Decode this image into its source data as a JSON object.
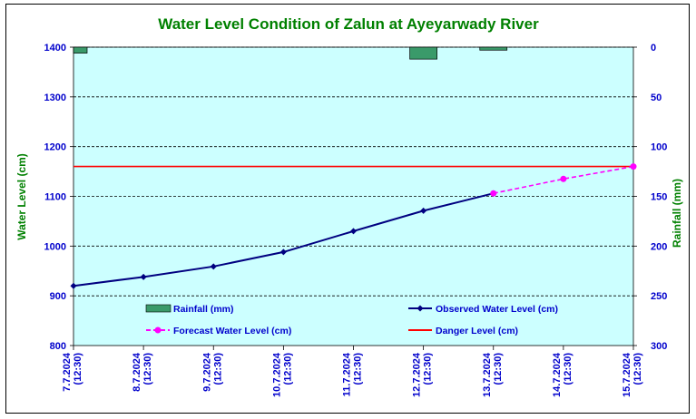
{
  "chart_data": {
    "type": "line",
    "title": "Water Level Condition of Zalun at Ayeyarwady River",
    "ylabel": "Water Level (cm)",
    "y2label": "Rainfall (mm)",
    "ylim": [
      800,
      1400
    ],
    "y2lim": [
      300,
      0
    ],
    "yticks": [
      "800",
      "900",
      "1000",
      "1100",
      "1200",
      "1300",
      "1400"
    ],
    "y2ticks": [
      "0",
      "50",
      "100",
      "150",
      "200",
      "250",
      "300"
    ],
    "categories": [
      [
        "7.7.2024",
        "(12:30)"
      ],
      [
        "8.7.2024",
        "(12:30)"
      ],
      [
        "9.7.2024",
        "(12:30)"
      ],
      [
        "10.7.2024",
        "(12:30)"
      ],
      [
        "11.7.2024",
        "(12:30)"
      ],
      [
        "12.7.2024",
        "(12:30)"
      ],
      [
        "13.7.2024",
        "(12:30)"
      ],
      [
        "14.7.2024",
        "(12:30)"
      ],
      [
        "15.7.2024",
        "(12:30)"
      ]
    ],
    "series": [
      {
        "name": "Rainfall (mm)",
        "kind": "bar",
        "axis": "right",
        "color": "#3a9a6a",
        "values": [
          6,
          0,
          0,
          0,
          0,
          12,
          3,
          0,
          0
        ]
      },
      {
        "name": "Observed Water Level (cm)",
        "kind": "line",
        "axis": "left",
        "color": "#000080",
        "values": [
          920,
          938,
          959,
          988,
          1030,
          1071,
          1106,
          null,
          null
        ]
      },
      {
        "name": "Forecast Water Level (cm)",
        "kind": "line-dashed",
        "axis": "left",
        "color": "#ff00ff",
        "values": [
          null,
          null,
          null,
          null,
          null,
          null,
          1106,
          1135,
          1160
        ]
      },
      {
        "name": "Danger Level (cm)",
        "kind": "hline",
        "axis": "left",
        "color": "#ff0000",
        "value": 1160
      }
    ],
    "legend": {
      "rainfall": "Rainfall (mm)",
      "observed": "Observed Water Level (cm)",
      "forecast": "Forecast Water Level (cm)",
      "danger": "Danger Level (cm)"
    },
    "colors": {
      "plot_bg": "#ccffff",
      "title": "#008000",
      "axis_text": "#0000cc",
      "y2_label": "#008000"
    }
  }
}
